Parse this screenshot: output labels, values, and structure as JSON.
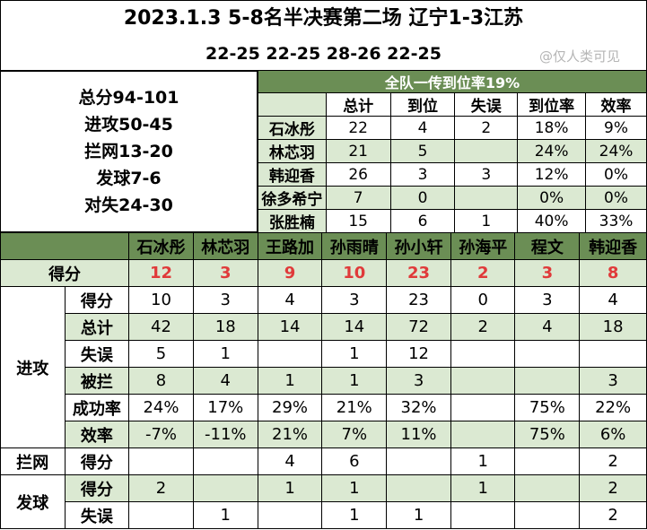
{
  "title": "2023.1.3 5-8名半决赛第二场 辽宁1-3江苏",
  "set_scores": "22-25 22-25 28-26 22-25",
  "watermark": "@仅人类可见",
  "summary": {
    "total": "总分94-101",
    "attack": "进攻50-45",
    "block": "拦网13-20",
    "serve": "发球7-6",
    "errors": "对失24-30"
  },
  "reception": {
    "title": "全队一传到位率19%",
    "headers": [
      "",
      "总计",
      "到位",
      "失误",
      "到位率",
      "效率"
    ],
    "rows": [
      [
        "石冰彤",
        "22",
        "4",
        "2",
        "18%",
        "9%"
      ],
      [
        "林芯羽",
        "21",
        "5",
        "",
        "24%",
        "24%"
      ],
      [
        "韩迎香",
        "26",
        "3",
        "3",
        "12%",
        "0%"
      ],
      [
        "徐多希宁",
        "7",
        "0",
        "",
        "0%",
        "0%"
      ],
      [
        "张胜楠",
        "15",
        "6",
        "1",
        "40%",
        "33%"
      ]
    ]
  },
  "main": {
    "players": [
      "石冰彤",
      "林芯羽",
      "王路加",
      "孙雨晴",
      "孙小轩",
      "孙海平",
      "程文",
      "韩迎香"
    ],
    "score_label": "得分",
    "scores": [
      "12",
      "3",
      "9",
      "10",
      "23",
      "2",
      "3",
      "8"
    ],
    "attack": {
      "label": "进攻",
      "rows": [
        {
          "label": "得分",
          "values": [
            "10",
            "3",
            "4",
            "3",
            "23",
            "0",
            "3",
            "4"
          ]
        },
        {
          "label": "总计",
          "values": [
            "42",
            "18",
            "14",
            "14",
            "72",
            "2",
            "4",
            "18"
          ]
        },
        {
          "label": "失误",
          "values": [
            "5",
            "1",
            "",
            "1",
            "12",
            "",
            "",
            ""
          ]
        },
        {
          "label": "被拦",
          "values": [
            "8",
            "4",
            "1",
            "1",
            "3",
            "",
            "",
            "3"
          ]
        },
        {
          "label": "成功率",
          "values": [
            "24%",
            "17%",
            "29%",
            "21%",
            "32%",
            "",
            "75%",
            "22%"
          ]
        },
        {
          "label": "效率",
          "values": [
            "-7%",
            "-11%",
            "21%",
            "7%",
            "11%",
            "",
            "75%",
            "6%"
          ]
        }
      ]
    },
    "block": {
      "label": "拦网",
      "rows": [
        {
          "label": "得分",
          "values": [
            "",
            "",
            "4",
            "6",
            "",
            "1",
            "",
            "2"
          ]
        }
      ]
    },
    "serve": {
      "label": "发球",
      "rows": [
        {
          "label": "得分",
          "values": [
            "2",
            "",
            "1",
            "1",
            "",
            "1",
            "",
            "2"
          ]
        },
        {
          "label": "失误",
          "values": [
            "",
            "1",
            "",
            "1",
            "1",
            "",
            "",
            "2"
          ]
        }
      ]
    }
  }
}
